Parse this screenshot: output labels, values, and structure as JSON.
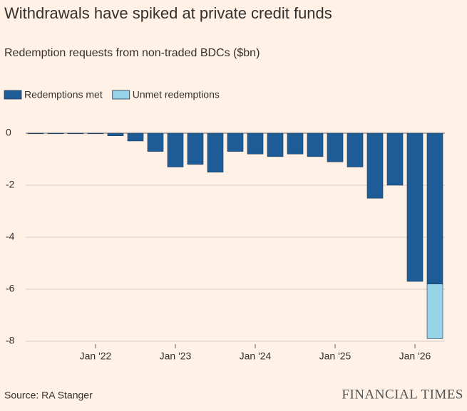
{
  "chart_data": {
    "type": "bar",
    "stacked": true,
    "title": "Withdrawals have spiked at private credit funds",
    "subtitle": "Redemption requests from non-traded BDCs ($bn)",
    "source": "Source: RA Stanger",
    "logo": "FINANCIAL TIMES",
    "categories": [
      null,
      null,
      null,
      "Jan '22",
      null,
      null,
      null,
      "Jan '23",
      null,
      null,
      null,
      "Jan '24",
      null,
      null,
      null,
      "Jan '25",
      null,
      null,
      null,
      "Jan '26",
      null
    ],
    "series": [
      {
        "name": "Redemptions met",
        "color": "#1e5c97",
        "values": [
          -0.02,
          -0.02,
          -0.02,
          -0.02,
          -0.1,
          -0.3,
          -0.7,
          -1.3,
          -1.2,
          -1.5,
          -0.7,
          -0.8,
          -0.9,
          -0.8,
          -0.9,
          -1.1,
          -1.3,
          -2.5,
          -2.0,
          -5.7,
          -5.8
        ]
      },
      {
        "name": "Unmet redemptions",
        "color": "#97d3e9",
        "values": [
          null,
          null,
          null,
          null,
          null,
          null,
          null,
          null,
          null,
          null,
          null,
          null,
          null,
          null,
          null,
          null,
          null,
          null,
          null,
          null,
          -2.1
        ]
      }
    ],
    "ylim": [
      -8,
      0
    ],
    "yticks": [
      0,
      -2,
      -4,
      -6,
      -8
    ],
    "grid": true,
    "legend": "top-left"
  }
}
